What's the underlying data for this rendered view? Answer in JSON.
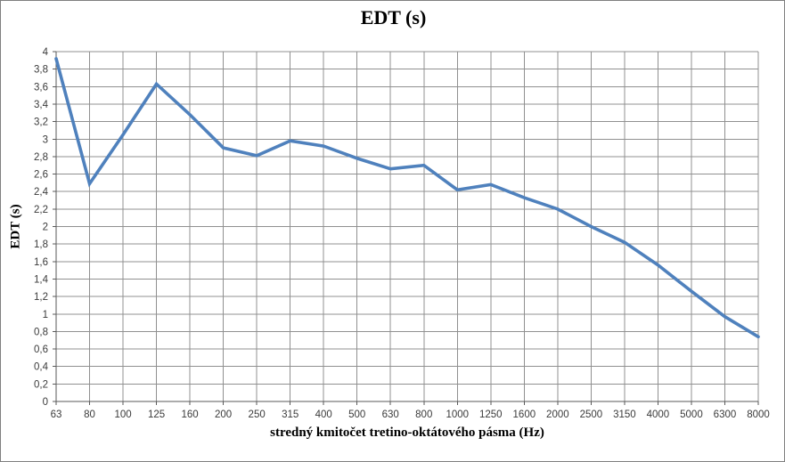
{
  "chart_data": {
    "type": "line",
    "title": "EDT (s)",
    "xlabel": "stredný kmitočet tretino-oktátového pásma (Hz)",
    "ylabel": "EDT (s)",
    "categories": [
      "63",
      "80",
      "100",
      "125",
      "160",
      "200",
      "250",
      "315",
      "400",
      "500",
      "630",
      "800",
      "1000",
      "1250",
      "1600",
      "2000",
      "2500",
      "3150",
      "4000",
      "5000",
      "6300",
      "8000"
    ],
    "series": [
      {
        "name": "EDT",
        "values": [
          3.92,
          2.49,
          3.05,
          3.63,
          3.28,
          2.9,
          2.81,
          2.98,
          2.92,
          2.78,
          2.66,
          2.7,
          2.42,
          2.48,
          2.33,
          2.2,
          2.0,
          1.82,
          1.56,
          1.26,
          0.97,
          0.74
        ]
      }
    ],
    "ylim": [
      0,
      4
    ],
    "ytick_step": 0.2,
    "decimal_separator": ",",
    "grid": true,
    "legend": "none",
    "colors": {
      "series_line": "#4f81bd",
      "gridline": "#909090",
      "axis_line": "#5a5a5a",
      "tick_text": "#3a3a3a",
      "title_text": "#000000",
      "background": "#ffffff",
      "frame_border": "#7f7f7f"
    }
  }
}
